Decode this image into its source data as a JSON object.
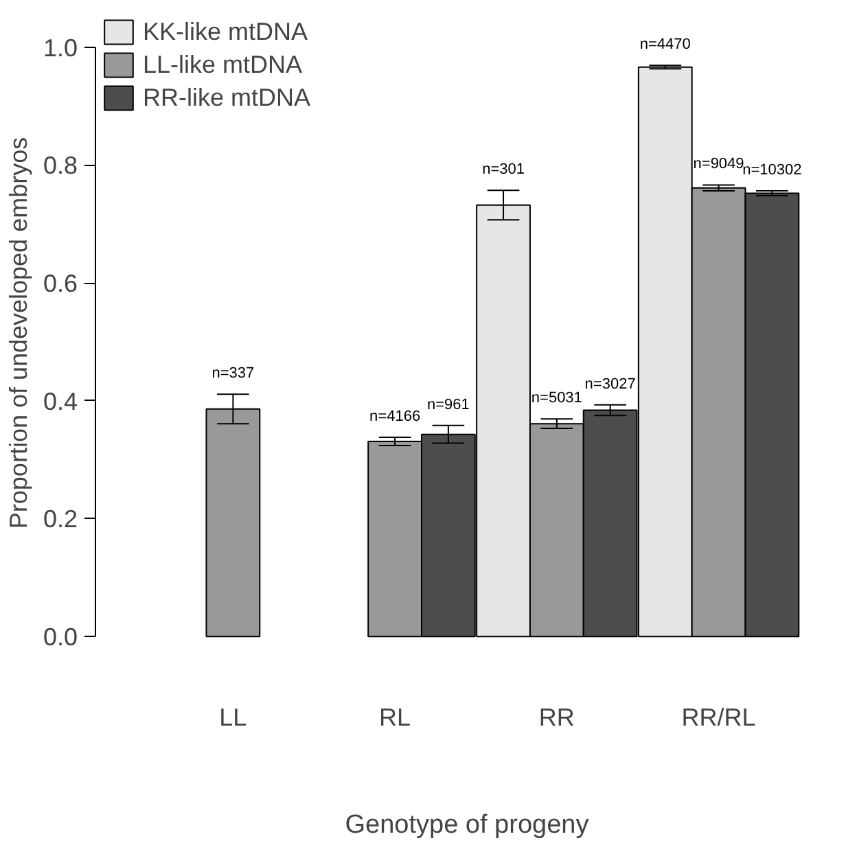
{
  "chart_data": {
    "type": "bar",
    "xlabel": "Genotype of progeny",
    "ylabel": "Proportion of undeveloped embryos",
    "categories": [
      "LL",
      "RL",
      "RR",
      "RR/RL"
    ],
    "ylim": [
      0,
      1.0
    ],
    "yticks": [
      {
        "value": 0,
        "label": "0.0"
      },
      {
        "value": 0.2,
        "label": "0.2"
      },
      {
        "value": 0.4,
        "label": "0.4"
      },
      {
        "value": 0.6,
        "label": "0.6"
      },
      {
        "value": 0.8,
        "label": "0.8"
      },
      {
        "value": 1.0,
        "label": "1.0"
      }
    ],
    "grid": false,
    "legend": "top left",
    "annotations": [
      "n=301",
      "n=4470",
      "n=337",
      "n=4166",
      "n=5031",
      "n=9049",
      "n=961",
      "n=3027",
      "n=10302"
    ],
    "series": [
      {
        "name": "KK-like mtDNA",
        "color": "#e6e6e6",
        "values": [
          null,
          null,
          0.732,
          0.966
        ],
        "errors": [
          null,
          null,
          0.025,
          0.003
        ]
      },
      {
        "name": "LL-like mtDNA",
        "color": "#999999",
        "values": [
          0.386,
          0.331,
          0.361,
          0.761
        ],
        "errors": [
          0.025,
          0.007,
          0.008,
          0.005
        ]
      },
      {
        "name": "RR-like mtDNA",
        "color": "#4d4d4d",
        "values": [
          null,
          0.343,
          0.384,
          0.752
        ],
        "errors": [
          null,
          0.015,
          0.009,
          0.004
        ]
      }
    ]
  }
}
